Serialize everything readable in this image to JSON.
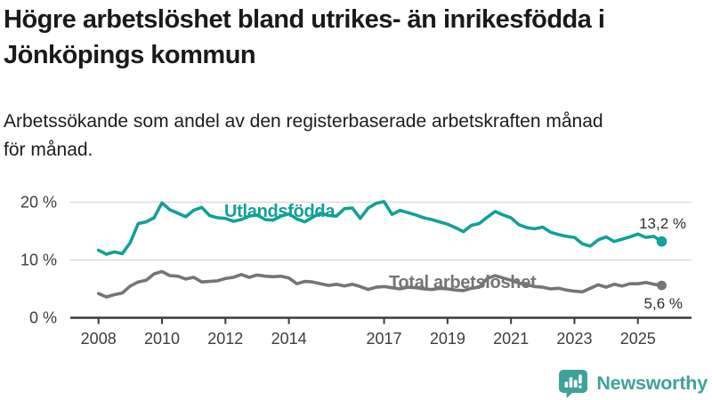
{
  "header": {
    "title_line1": "Högre arbetslöshet bland utrikes- än inrikesfödda i",
    "title_line2": "Jönköpings kommun",
    "subtitle_line1": "Arbetssökande som andel av den registerbaserade arbetskraften månad",
    "subtitle_line2": "för månad."
  },
  "chart_data": {
    "type": "line",
    "unit": "%",
    "grid": "horizontal-only",
    "x_start": 2008.0,
    "x_step": 0.25,
    "x_end": 2025.75,
    "x_axis": {
      "ticks": [
        {
          "x": 2008,
          "label": "2008"
        },
        {
          "x": 2010,
          "label": "2010"
        },
        {
          "x": 2012,
          "label": "2012"
        },
        {
          "x": 2014,
          "label": "2014"
        },
        {
          "x": 2017,
          "label": "2017"
        },
        {
          "x": 2019,
          "label": "2019"
        },
        {
          "x": 2021,
          "label": "2021"
        },
        {
          "x": 2023,
          "label": "2023"
        },
        {
          "x": 2025,
          "label": "2025"
        }
      ]
    },
    "y_axis": {
      "range": [
        0,
        22
      ],
      "ticks": [
        {
          "value": 20,
          "label": "20 %"
        },
        {
          "value": 10,
          "label": "10 %"
        },
        {
          "value": 0,
          "label": "0 %"
        }
      ]
    },
    "series": [
      {
        "name": "Utlandsfödda",
        "color": "#12a098",
        "end_label": "13,2 %",
        "end_value": 13.2,
        "values": [
          11.7,
          11.0,
          11.4,
          11.1,
          13.0,
          16.3,
          16.6,
          17.3,
          19.9,
          18.7,
          18.1,
          17.5,
          18.6,
          19.1,
          17.7,
          17.3,
          17.2,
          16.7,
          17.0,
          17.6,
          17.8,
          17.0,
          16.9,
          17.6,
          18.0,
          17.1,
          16.6,
          17.4,
          18.1,
          17.7,
          17.6,
          18.9,
          19.0,
          17.2,
          19.0,
          19.8,
          20.1,
          17.9,
          18.6,
          18.2,
          17.8,
          17.3,
          17.0,
          16.6,
          16.2,
          15.6,
          14.9,
          16.0,
          16.3,
          17.4,
          18.4,
          17.8,
          17.3,
          16.1,
          15.6,
          15.4,
          15.7,
          14.8,
          14.4,
          14.1,
          13.9,
          12.8,
          12.4,
          13.5,
          14.0,
          13.2,
          13.6,
          14.0,
          14.5,
          13.9,
          14.1,
          13.2
        ]
      },
      {
        "name": "Total arbetslöshet",
        "color": "#757575",
        "end_label": "5,6 %",
        "end_value": 5.6,
        "values": [
          4.2,
          3.6,
          4.0,
          4.3,
          5.5,
          6.2,
          6.5,
          7.6,
          8.0,
          7.3,
          7.2,
          6.7,
          7.0,
          6.2,
          6.3,
          6.4,
          6.8,
          7.0,
          7.5,
          7.0,
          7.4,
          7.2,
          7.1,
          7.2,
          6.9,
          5.9,
          6.3,
          6.2,
          5.9,
          5.6,
          5.8,
          5.5,
          5.8,
          5.4,
          4.9,
          5.3,
          5.4,
          5.2,
          5.0,
          5.3,
          5.2,
          5.0,
          4.9,
          5.1,
          5.0,
          4.8,
          4.7,
          5.1,
          5.3,
          6.8,
          7.3,
          6.9,
          6.5,
          6.0,
          5.7,
          5.4,
          5.3,
          5.0,
          5.1,
          4.8,
          4.6,
          4.5,
          5.1,
          5.7,
          5.3,
          5.8,
          5.5,
          5.9,
          5.9,
          6.1,
          5.8,
          5.6
        ]
      }
    ]
  },
  "branding": {
    "logo_text": "Newsworthy",
    "logo_color": "#3ea29a",
    "logo_icon": "bar-chart-speech-bubble"
  }
}
